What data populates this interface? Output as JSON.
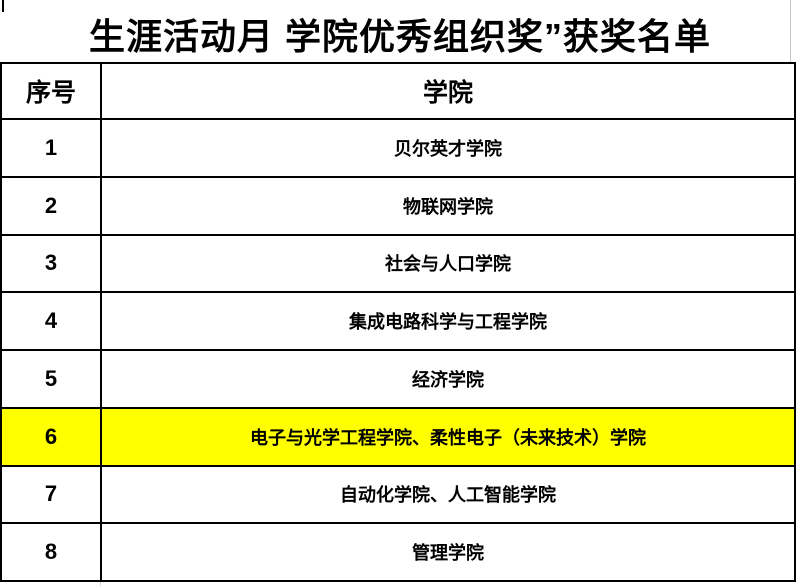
{
  "title": "生涯活动月 学院优秀组织奖”获奖名单",
  "table": {
    "headers": [
      "序号",
      "学院"
    ],
    "rows": [
      {
        "no": "1",
        "college": "贝尔英才学院",
        "highlighted": false
      },
      {
        "no": "2",
        "college": "物联网学院",
        "highlighted": false
      },
      {
        "no": "3",
        "college": "社会与人口学院",
        "highlighted": false
      },
      {
        "no": "4",
        "college": "集成电路科学与工程学院",
        "highlighted": false
      },
      {
        "no": "5",
        "college": "经济学院",
        "highlighted": false
      },
      {
        "no": "6",
        "college": "电子与光学工程学院、柔性电子（未来技术）学院",
        "highlighted": true
      },
      {
        "no": "7",
        "college": "自动化学院、人工智能学院",
        "highlighted": false
      },
      {
        "no": "8",
        "college": "管理学院",
        "highlighted": false
      }
    ]
  },
  "colors": {
    "highlight": "#FFFF00",
    "border": "#000000",
    "text": "#000000",
    "background": "#FFFFFF",
    "stray_gridline": "#C6C6C6"
  }
}
